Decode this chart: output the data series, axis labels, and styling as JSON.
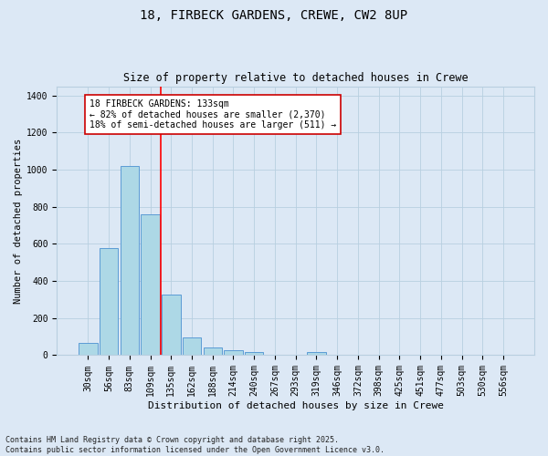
{
  "title1": "18, FIRBECK GARDENS, CREWE, CW2 8UP",
  "title2": "Size of property relative to detached houses in Crewe",
  "xlabel": "Distribution of detached houses by size in Crewe",
  "ylabel": "Number of detached properties",
  "categories": [
    "30sqm",
    "56sqm",
    "83sqm",
    "109sqm",
    "135sqm",
    "162sqm",
    "188sqm",
    "214sqm",
    "240sqm",
    "267sqm",
    "293sqm",
    "319sqm",
    "346sqm",
    "372sqm",
    "398sqm",
    "425sqm",
    "451sqm",
    "477sqm",
    "503sqm",
    "530sqm",
    "556sqm"
  ],
  "values": [
    65,
    578,
    1020,
    760,
    325,
    95,
    40,
    25,
    15,
    0,
    0,
    15,
    0,
    0,
    0,
    0,
    0,
    0,
    0,
    0,
    0
  ],
  "bar_color": "#add8e6",
  "bar_edge_color": "#5b9bd5",
  "annotation_text": "18 FIRBECK GARDENS: 133sqm\n← 82% of detached houses are smaller (2,370)\n18% of semi-detached houses are larger (511) →",
  "annotation_box_color": "#ffffff",
  "annotation_box_edge": "#cc0000",
  "ylim": [
    0,
    1450
  ],
  "yticks": [
    0,
    200,
    400,
    600,
    800,
    1000,
    1200,
    1400
  ],
  "footer1": "Contains HM Land Registry data © Crown copyright and database right 2025.",
  "footer2": "Contains public sector information licensed under the Open Government Licence v3.0.",
  "bg_color": "#dce8f5",
  "grid_color": "#b8cfe0",
  "title1_fontsize": 10,
  "title2_fontsize": 8.5,
  "tick_fontsize": 7,
  "ylabel_fontsize": 7.5,
  "xlabel_fontsize": 8,
  "annotation_fontsize": 7,
  "footer_fontsize": 6
}
